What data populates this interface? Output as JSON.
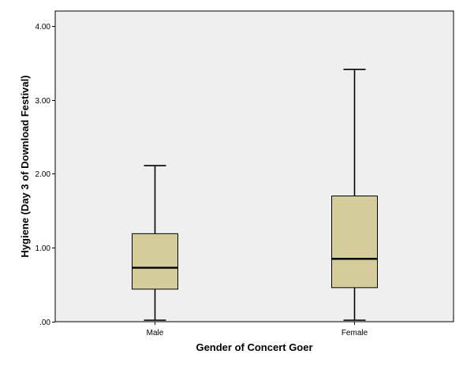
{
  "chart_data": {
    "type": "box",
    "xlabel": "Gender of Concert Goer",
    "ylabel": "Hygiene (Day 3 of Download Festival)",
    "ylim": [
      0,
      4.2
    ],
    "yticks": [
      0,
      1,
      2,
      3,
      4
    ],
    "ytick_labels": [
      ".00",
      "1.00",
      "2.00",
      "3.00",
      "4.00"
    ],
    "grid": false,
    "box_color": "#d4cd9b",
    "background_color": "#efefef",
    "categories": [
      "Male",
      "Female"
    ],
    "boxes": [
      {
        "category": "Male",
        "min": 0.02,
        "q1": 0.44,
        "median": 0.73,
        "q3": 1.19,
        "max": 2.11
      },
      {
        "category": "Female",
        "min": 0.02,
        "q1": 0.46,
        "median": 0.85,
        "q3": 1.7,
        "max": 3.41
      }
    ]
  }
}
